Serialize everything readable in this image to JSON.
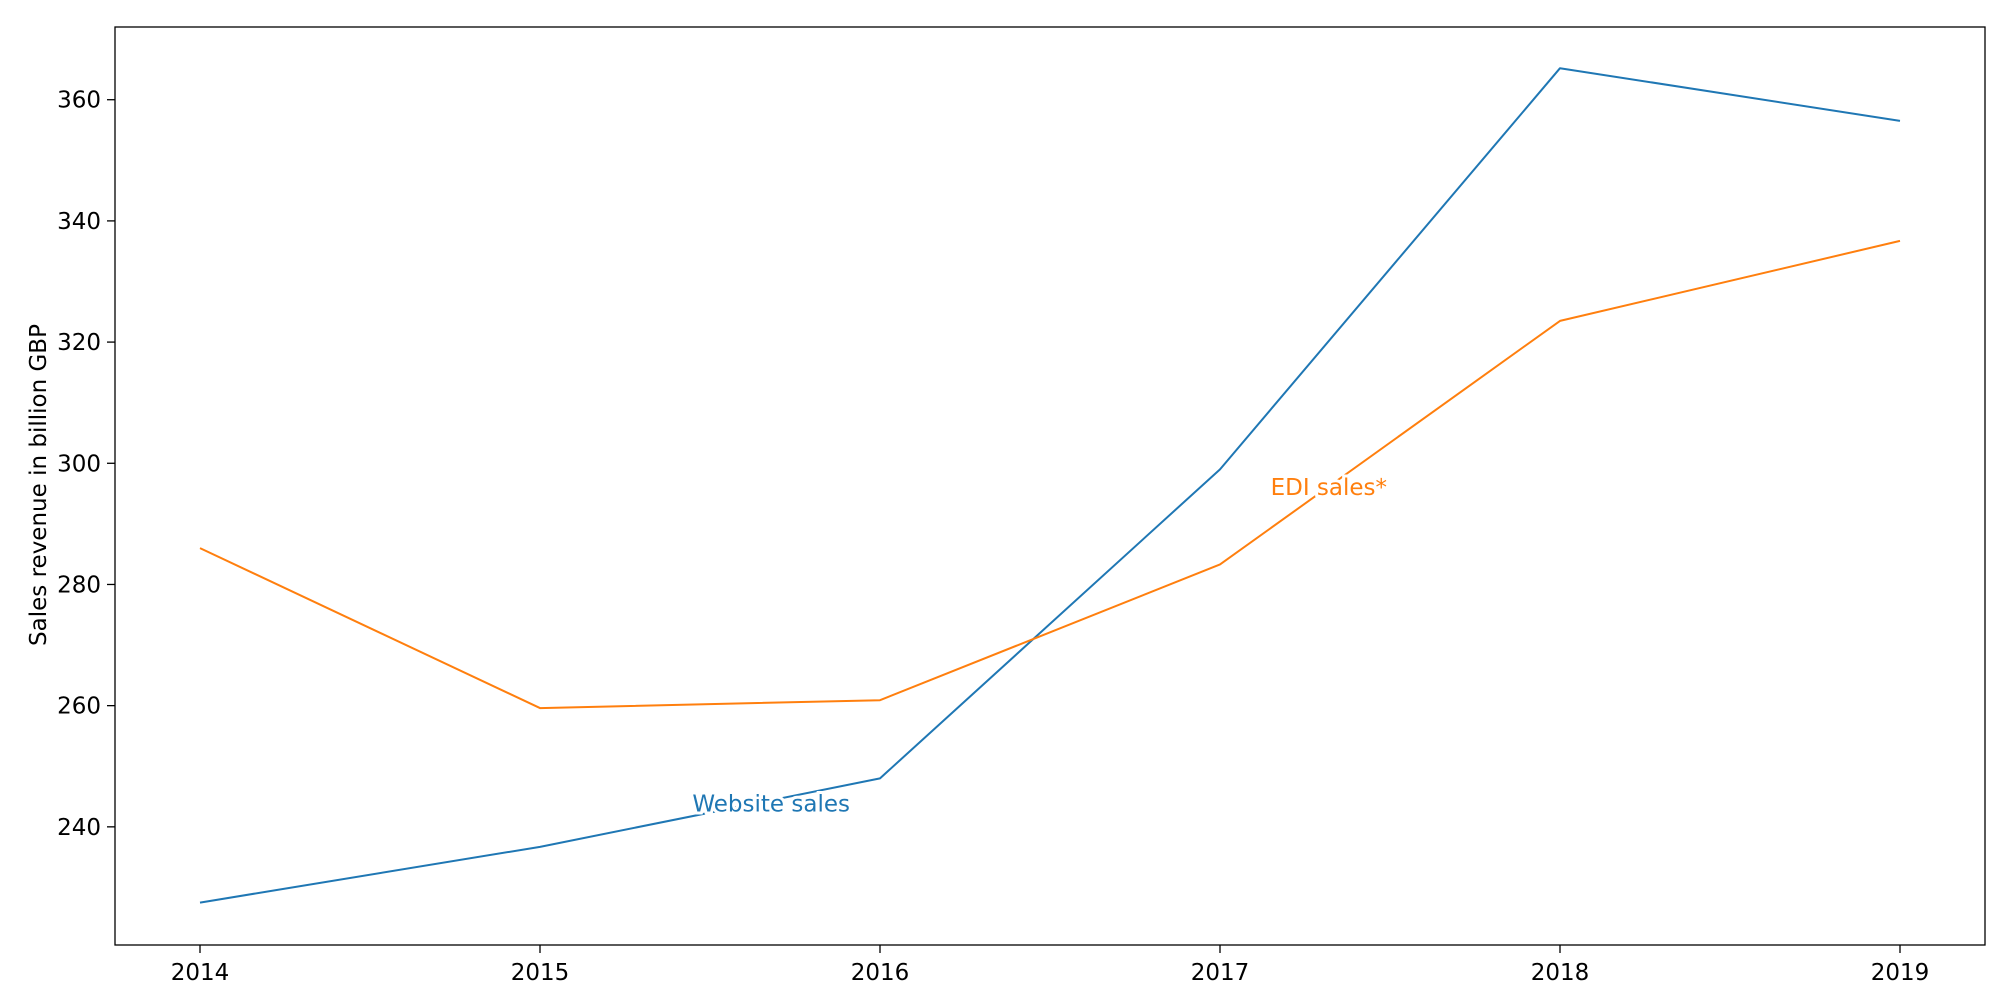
{
  "chart_data": {
    "type": "line",
    "title": "",
    "xlabel": "",
    "ylabel": "Sales revenue in billion GBP",
    "x": [
      2014,
      2015,
      2016,
      2017,
      2018,
      2019
    ],
    "xticks": [
      "2014",
      "2015",
      "2016",
      "2017",
      "2018",
      "2019"
    ],
    "yticks": [
      240,
      260,
      280,
      300,
      320,
      340,
      360
    ],
    "xlim": [
      2013.75,
      2019.25
    ],
    "ylim": [
      220.5,
      372
    ],
    "grid": false,
    "legend": "none (series labelled inline)",
    "series": [
      {
        "name": "Website sales",
        "color": "#1f77b4",
        "values": [
          227.5,
          236.7,
          248,
          299,
          365.2,
          356.5
        ]
      },
      {
        "name": "EDI sales*",
        "color": "#ff7f0e",
        "values": [
          286,
          259.6,
          260.9,
          283.3,
          323.5,
          336.7
        ]
      }
    ]
  }
}
